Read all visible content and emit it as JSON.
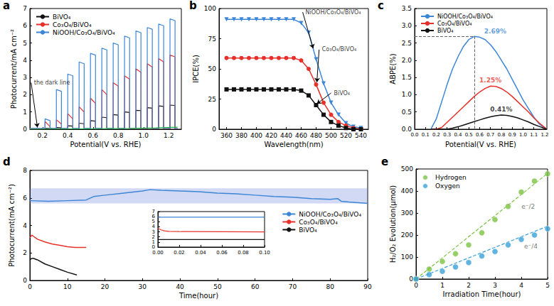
{
  "chart_data": [
    {
      "panel": "a",
      "type": "line",
      "grid": false,
      "legend": "upper left",
      "x_label": "Potential(V vs. RHE)",
      "y_label": "Photocurrent/mA cm⁻²",
      "xlim": [
        0.1,
        1.3
      ],
      "xticks": [
        0.2,
        0.4,
        0.6,
        0.8,
        {
          "value": 1,
          "label": "1.0"
        },
        1.2
      ],
      "ylim": [
        0,
        7
      ],
      "yticks": [
        0,
        1,
        2,
        3,
        4,
        5,
        6,
        7
      ],
      "x": [
        0.1,
        0.22,
        0.22,
        0.26,
        0.26,
        0.31,
        0.31,
        0.35,
        0.35,
        0.4,
        0.4,
        0.44,
        0.44,
        0.49,
        0.49,
        0.53,
        0.53,
        0.58,
        0.58,
        0.62,
        0.62,
        0.67,
        0.67,
        0.71,
        0.71,
        0.76,
        0.76,
        0.8,
        0.8,
        0.85,
        0.85,
        0.89,
        0.89,
        0.94,
        0.94,
        0.98,
        0.98,
        1.03,
        1.03,
        1.07,
        1.07,
        1.12,
        1.12,
        1.16,
        1.16,
        1.21,
        1.21,
        1.25,
        1.25,
        1.27
      ],
      "series": [
        {
          "name": "BiVO₄",
          "color": "#111111",
          "values": [
            0.02,
            0.02,
            0.05,
            0.04,
            0.02,
            0.02,
            0.1,
            0.08,
            0.02,
            0.02,
            0.2,
            0.18,
            0.02,
            0.02,
            0.35,
            0.32,
            0.02,
            0.02,
            0.5,
            0.47,
            0.02,
            0.02,
            0.7,
            0.67,
            0.02,
            0.02,
            0.85,
            0.82,
            0.02,
            0.02,
            1.0,
            0.97,
            0.02,
            0.02,
            1.1,
            1.08,
            0.02,
            0.02,
            1.25,
            1.22,
            0.02,
            0.02,
            1.35,
            1.32,
            0.02,
            0.02,
            1.4,
            1.38,
            0.02,
            0.02
          ]
        },
        {
          "name": "Co₃O₄/BiVO₄",
          "color": "#e8302a",
          "values": [
            0.03,
            0.03,
            0.45,
            0.15,
            0.03,
            0.03,
            0.55,
            0.3,
            0.03,
            0.03,
            0.9,
            0.6,
            0.03,
            0.03,
            1.3,
            1.0,
            0.03,
            0.03,
            1.8,
            1.5,
            0.03,
            0.03,
            2.3,
            2.0,
            0.03,
            0.03,
            2.7,
            2.5,
            0.03,
            0.03,
            3.1,
            2.9,
            0.03,
            0.03,
            3.5,
            3.3,
            0.03,
            0.03,
            3.8,
            3.6,
            0.03,
            0.03,
            4.1,
            3.9,
            0.03,
            0.03,
            4.3,
            4.2,
            0.03,
            0.03
          ]
        },
        {
          "name": "NiOOH/Co₃O₄/BiVO₄",
          "color": "#3d86d6",
          "values": [
            0.05,
            0.05,
            0.6,
            0.5,
            0.05,
            0.05,
            2.3,
            2.2,
            0.05,
            0.05,
            3.2,
            3.1,
            0.05,
            0.05,
            3.9,
            3.8,
            0.05,
            0.05,
            4.4,
            4.3,
            0.05,
            0.05,
            4.7,
            4.6,
            0.05,
            0.05,
            5.0,
            4.9,
            0.05,
            0.05,
            5.4,
            5.3,
            0.05,
            0.05,
            5.7,
            5.6,
            0.05,
            0.05,
            5.9,
            5.8,
            0.05,
            0.05,
            6.1,
            6.0,
            0.05,
            0.05,
            6.4,
            6.3,
            0.05,
            0.05
          ]
        },
        {
          "color": "#22b14c",
          "x": [
            0.1,
            0.5,
            0.9,
            1.1,
            1.27
          ],
          "values": [
            0,
            0.02,
            0.05,
            0.08,
            0.12
          ]
        }
      ],
      "annotations": [
        {
          "text": "the dark line",
          "x": 0.11,
          "y": 2.7,
          "color": "#000000",
          "arrow": [
            0.16,
            0.1
          ]
        }
      ]
    },
    {
      "panel": "b",
      "type": "line",
      "grid": false,
      "x_label": "Wavelength(nm)",
      "y_label": "IPCE(%)",
      "xlim": [
        350,
        550
      ],
      "xticks": [
        360,
        380,
        400,
        420,
        440,
        460,
        480,
        500,
        520,
        540
      ],
      "ylim": [
        0,
        100
      ],
      "yticks": [
        0,
        25,
        50,
        75,
        100
      ],
      "x": [
        360,
        370,
        380,
        390,
        400,
        410,
        420,
        430,
        440,
        450,
        460,
        470,
        480,
        490,
        500,
        510,
        520,
        530,
        540
      ],
      "series": [
        {
          "color": "#3d86d6",
          "marker": "triangle_down",
          "values": [
            91,
            91,
            91,
            91,
            91,
            91,
            91,
            91,
            91,
            91,
            88,
            80,
            58,
            38,
            22,
            12,
            5,
            2,
            1
          ]
        },
        {
          "color": "#e8302a",
          "marker": "circle",
          "values": [
            59,
            59,
            59,
            59,
            59,
            59,
            59,
            59,
            59,
            59,
            57,
            50,
            37,
            22,
            12,
            6,
            3,
            1,
            0
          ]
        },
        {
          "color": "#111111",
          "marker": "square",
          "values": [
            33,
            33,
            33,
            33,
            33,
            33,
            33,
            33,
            33,
            33,
            32,
            28,
            20,
            12,
            6,
            3,
            1,
            0,
            0
          ]
        }
      ],
      "annotations": [
        {
          "text": "NiOOH/Co₃O₄/BiVO₄",
          "x": 462,
          "y": 97,
          "color": "#000000",
          "arrow": [
            476,
            67
          ]
        },
        {
          "text": "Co₃O₄/BiVO₄",
          "x": 484,
          "y": 66,
          "color": "#000000",
          "arrow": [
            481,
            39
          ]
        },
        {
          "text": "BiVO₄",
          "x": 500,
          "y": 30,
          "color": "#000000",
          "arrow": [
            481,
            21
          ]
        }
      ]
    },
    {
      "panel": "c",
      "type": "line",
      "grid": false,
      "legend": "upper left",
      "x_label": "Potential(V vs. RHE)",
      "y_label": "ABPE(%)",
      "xlim": [
        0,
        1.22
      ],
      "xticks": [
        {
          "value": 0,
          "label": "0.0"
        },
        0.1,
        0.2,
        0.3,
        0.4,
        0.5,
        0.6,
        0.7,
        0.8,
        0.9,
        {
          "value": 1,
          "label": "1.0"
        },
        1.1,
        1.2
      ],
      "ylim": [
        0,
        3.5
      ],
      "yticks": [
        {
          "value": 0,
          "label": "0.0"
        },
        0.5,
        {
          "value": 1,
          "label": "1.0"
        },
        1.5,
        {
          "value": 2,
          "label": "2.0"
        },
        2.5,
        {
          "value": 3,
          "label": "3.0"
        },
        3.5
      ],
      "x": [
        0.15,
        0.2,
        0.25,
        0.3,
        0.35,
        0.4,
        0.45,
        0.5,
        0.55,
        0.6,
        0.65,
        0.7,
        0.75,
        0.8,
        0.85,
        0.9,
        0.95,
        1.0,
        1.05,
        1.1,
        1.15,
        1.2,
        1.22
      ],
      "series": [
        {
          "name": "NiOOH/Co₃O₄/BiVO₄",
          "color": "#3d86d6",
          "values": [
            0,
            0.3,
            0.8,
            1.3,
            1.75,
            2.1,
            2.4,
            2.6,
            2.69,
            2.67,
            2.6,
            2.45,
            2.25,
            2.0,
            1.75,
            1.45,
            1.15,
            0.85,
            0.6,
            0.35,
            0.15,
            0.03,
            0
          ]
        },
        {
          "name": "Co₃O₄/BiVO₄",
          "color": "#e8302a",
          "values": [
            0,
            0,
            0.05,
            0.2,
            0.35,
            0.5,
            0.65,
            0.8,
            0.95,
            1.08,
            1.18,
            1.25,
            1.24,
            1.18,
            1.08,
            0.95,
            0.8,
            0.65,
            0.5,
            0.33,
            0.18,
            0.05,
            0
          ]
        },
        {
          "name": "BiVO₄",
          "color": "#111111",
          "values": [
            0,
            0,
            0,
            0,
            0.03,
            0.07,
            0.12,
            0.17,
            0.22,
            0.27,
            0.32,
            0.36,
            0.39,
            0.41,
            0.4,
            0.37,
            0.33,
            0.27,
            0.21,
            0.14,
            0.08,
            0.02,
            0
          ]
        }
      ],
      "annotations": [
        {
          "text": "2.69%",
          "x": 0.55,
          "y": 2.69,
          "color": "#3d86d6",
          "line_style": "dashed"
        },
        {
          "text": "1.25%",
          "x": 0.7,
          "y": 1.25,
          "color": "#e8302a"
        },
        {
          "text": "0.41%",
          "x": 0.8,
          "y": 0.41,
          "color": "#111111"
        }
      ]
    },
    {
      "panel": "d",
      "type": "line",
      "grid": false,
      "legend": "upper right",
      "x_label": "Time(hour)",
      "y_label": "Photocurrent(mA cm⁻²)",
      "xlim": [
        0,
        90
      ],
      "xticks": [
        0,
        10,
        20,
        30,
        40,
        50,
        60,
        70,
        80,
        90
      ],
      "ylim": [
        0,
        8
      ],
      "yticks": [
        0,
        2,
        4,
        6,
        8
      ],
      "series": [
        {
          "name": "NiOOH/Co₃O₄/BiVO₄",
          "color": "#3d86d6",
          "band": [
            5.6,
            6.7
          ],
          "x": [
            0,
            5,
            10,
            15,
            17,
            20,
            25,
            30,
            32,
            35,
            40,
            45,
            50,
            55,
            60,
            65,
            70,
            75,
            80,
            82,
            83,
            85,
            90
          ],
          "values": [
            5.8,
            5.75,
            5.8,
            5.85,
            6.1,
            6.2,
            6.35,
            6.5,
            6.6,
            6.55,
            6.5,
            6.45,
            6.35,
            6.3,
            6.2,
            6.1,
            6.05,
            5.95,
            5.9,
            5.95,
            5.75,
            5.7,
            5.6
          ]
        },
        {
          "name": "Co₃O₄/BiVO₄",
          "color": "#e8302a",
          "x": [
            0,
            0.5,
            1,
            2,
            4,
            6,
            8,
            10,
            12,
            15
          ],
          "values": [
            3.1,
            3.3,
            3.2,
            3.0,
            2.8,
            2.65,
            2.55,
            2.45,
            2.4,
            2.4
          ]
        },
        {
          "name": "BiVO₄",
          "color": "#111111",
          "x": [
            0,
            0.5,
            1,
            2,
            4,
            6,
            8,
            10,
            12.5
          ],
          "values": [
            1.5,
            1.6,
            1.6,
            1.5,
            1.2,
            1.0,
            0.8,
            0.6,
            0.4
          ]
        }
      ]
    },
    {
      "type": "line",
      "grid": false,
      "xlim": [
        0,
        0.1
      ],
      "xticks": [
        {
          "value": 0,
          "label": "0.00"
        },
        {
          "value": 0.02,
          "label": "0.02"
        },
        {
          "value": 0.04,
          "label": "0.04"
        },
        {
          "value": 0.06,
          "label": "0.06"
        },
        {
          "value": 0.08,
          "label": "0.08"
        },
        {
          "value": 0.1,
          "label": "0.10"
        }
      ],
      "ylim": [
        0,
        7
      ],
      "yticks": [
        0,
        1,
        2,
        3,
        4,
        5,
        6,
        7
      ],
      "series": [
        {
          "color": "#3d86d6",
          "x": [
            0,
            0.1
          ],
          "values": [
            5.9,
            5.9
          ]
        },
        {
          "color": "#e8302a",
          "x": [
            0,
            0.003,
            0.006,
            0.01,
            0.02,
            0.1
          ],
          "values": [
            3.7,
            3.4,
            3.2,
            3.1,
            3.05,
            3.0
          ]
        },
        {
          "color": "#111111",
          "x": [
            0,
            0.1
          ],
          "values": [
            1.5,
            1.5
          ]
        }
      ]
    },
    {
      "panel": "e",
      "type": "scatter",
      "grid": false,
      "legend": "upper left",
      "x_label": "Irradiation Time(hour)",
      "y_label": "H₂/O₂ Evolution(μmol)",
      "xlim": [
        0,
        5
      ],
      "xticks": [
        0,
        1,
        2,
        3,
        4,
        5
      ],
      "ylim": [
        0,
        500
      ],
      "yticks": [
        0,
        100,
        200,
        300,
        400,
        500
      ],
      "x": [
        0,
        0.5,
        1,
        1.5,
        2,
        2.5,
        3,
        3.5,
        4,
        4.5,
        5
      ],
      "series": [
        {
          "name": "Hydrogen",
          "color": "#7cc242",
          "marker": "circle",
          "values": [
            0,
            45,
            80,
            115,
            155,
            210,
            270,
            330,
            395,
            445,
            478
          ]
        },
        {
          "name": "Oxygen",
          "color": "#3aa0d8",
          "marker": "circle",
          "values": [
            0,
            20,
            35,
            55,
            75,
            105,
            125,
            155,
            180,
            200,
            228
          ]
        },
        {
          "type": "line",
          "color": "#7cc242",
          "line_style": "dashed",
          "x": [
            0,
            5
          ],
          "values": [
            0,
            480
          ]
        },
        {
          "type": "line",
          "color": "#3aa0d8",
          "line_style": "dashed",
          "x": [
            0,
            5
          ],
          "values": [
            0,
            240
          ]
        }
      ],
      "annotations": [
        {
          "text": "e⁻/2",
          "x": 3.9,
          "y": 330,
          "color": "#555555"
        },
        {
          "text": "e⁻/4",
          "x": 4.0,
          "y": 150,
          "color": "#555555"
        }
      ]
    }
  ]
}
